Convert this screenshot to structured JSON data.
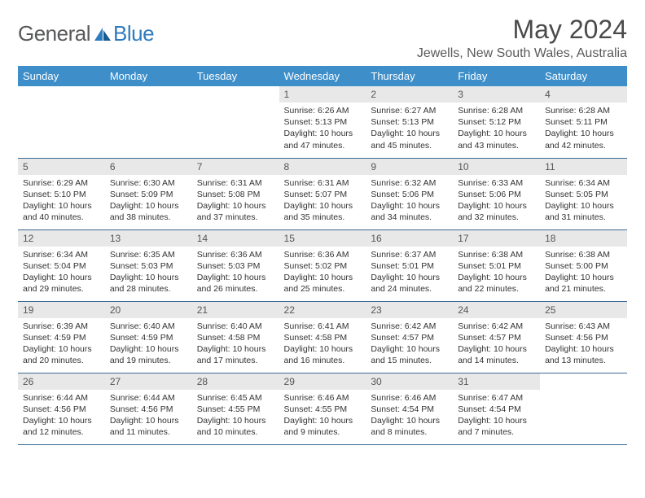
{
  "logo": {
    "text1": "General",
    "text2": "Blue"
  },
  "title": "May 2024",
  "location": "Jewells, New South Wales, Australia",
  "dayHeaders": [
    "Sunday",
    "Monday",
    "Tuesday",
    "Wednesday",
    "Thursday",
    "Friday",
    "Saturday"
  ],
  "colors": {
    "header_bg": "#3d8ec9",
    "header_text": "#ffffff",
    "daynum_bg": "#e8e8e8",
    "rule": "#3d6a93",
    "logo_gray": "#58595b",
    "logo_blue": "#2f7bbf"
  },
  "weeks": [
    [
      null,
      null,
      null,
      {
        "n": "1",
        "sr": "6:26 AM",
        "ss": "5:13 PM",
        "dl": "10 hours and 47 minutes."
      },
      {
        "n": "2",
        "sr": "6:27 AM",
        "ss": "5:13 PM",
        "dl": "10 hours and 45 minutes."
      },
      {
        "n": "3",
        "sr": "6:28 AM",
        "ss": "5:12 PM",
        "dl": "10 hours and 43 minutes."
      },
      {
        "n": "4",
        "sr": "6:28 AM",
        "ss": "5:11 PM",
        "dl": "10 hours and 42 minutes."
      }
    ],
    [
      {
        "n": "5",
        "sr": "6:29 AM",
        "ss": "5:10 PM",
        "dl": "10 hours and 40 minutes."
      },
      {
        "n": "6",
        "sr": "6:30 AM",
        "ss": "5:09 PM",
        "dl": "10 hours and 38 minutes."
      },
      {
        "n": "7",
        "sr": "6:31 AM",
        "ss": "5:08 PM",
        "dl": "10 hours and 37 minutes."
      },
      {
        "n": "8",
        "sr": "6:31 AM",
        "ss": "5:07 PM",
        "dl": "10 hours and 35 minutes."
      },
      {
        "n": "9",
        "sr": "6:32 AM",
        "ss": "5:06 PM",
        "dl": "10 hours and 34 minutes."
      },
      {
        "n": "10",
        "sr": "6:33 AM",
        "ss": "5:06 PM",
        "dl": "10 hours and 32 minutes."
      },
      {
        "n": "11",
        "sr": "6:34 AM",
        "ss": "5:05 PM",
        "dl": "10 hours and 31 minutes."
      }
    ],
    [
      {
        "n": "12",
        "sr": "6:34 AM",
        "ss": "5:04 PM",
        "dl": "10 hours and 29 minutes."
      },
      {
        "n": "13",
        "sr": "6:35 AM",
        "ss": "5:03 PM",
        "dl": "10 hours and 28 minutes."
      },
      {
        "n": "14",
        "sr": "6:36 AM",
        "ss": "5:03 PM",
        "dl": "10 hours and 26 minutes."
      },
      {
        "n": "15",
        "sr": "6:36 AM",
        "ss": "5:02 PM",
        "dl": "10 hours and 25 minutes."
      },
      {
        "n": "16",
        "sr": "6:37 AM",
        "ss": "5:01 PM",
        "dl": "10 hours and 24 minutes."
      },
      {
        "n": "17",
        "sr": "6:38 AM",
        "ss": "5:01 PM",
        "dl": "10 hours and 22 minutes."
      },
      {
        "n": "18",
        "sr": "6:38 AM",
        "ss": "5:00 PM",
        "dl": "10 hours and 21 minutes."
      }
    ],
    [
      {
        "n": "19",
        "sr": "6:39 AM",
        "ss": "4:59 PM",
        "dl": "10 hours and 20 minutes."
      },
      {
        "n": "20",
        "sr": "6:40 AM",
        "ss": "4:59 PM",
        "dl": "10 hours and 19 minutes."
      },
      {
        "n": "21",
        "sr": "6:40 AM",
        "ss": "4:58 PM",
        "dl": "10 hours and 17 minutes."
      },
      {
        "n": "22",
        "sr": "6:41 AM",
        "ss": "4:58 PM",
        "dl": "10 hours and 16 minutes."
      },
      {
        "n": "23",
        "sr": "6:42 AM",
        "ss": "4:57 PM",
        "dl": "10 hours and 15 minutes."
      },
      {
        "n": "24",
        "sr": "6:42 AM",
        "ss": "4:57 PM",
        "dl": "10 hours and 14 minutes."
      },
      {
        "n": "25",
        "sr": "6:43 AM",
        "ss": "4:56 PM",
        "dl": "10 hours and 13 minutes."
      }
    ],
    [
      {
        "n": "26",
        "sr": "6:44 AM",
        "ss": "4:56 PM",
        "dl": "10 hours and 12 minutes."
      },
      {
        "n": "27",
        "sr": "6:44 AM",
        "ss": "4:56 PM",
        "dl": "10 hours and 11 minutes."
      },
      {
        "n": "28",
        "sr": "6:45 AM",
        "ss": "4:55 PM",
        "dl": "10 hours and 10 minutes."
      },
      {
        "n": "29",
        "sr": "6:46 AM",
        "ss": "4:55 PM",
        "dl": "10 hours and 9 minutes."
      },
      {
        "n": "30",
        "sr": "6:46 AM",
        "ss": "4:54 PM",
        "dl": "10 hours and 8 minutes."
      },
      {
        "n": "31",
        "sr": "6:47 AM",
        "ss": "4:54 PM",
        "dl": "10 hours and 7 minutes."
      },
      null
    ]
  ],
  "labels": {
    "sunrise": "Sunrise: ",
    "sunset": "Sunset: ",
    "daylight": "Daylight: "
  }
}
